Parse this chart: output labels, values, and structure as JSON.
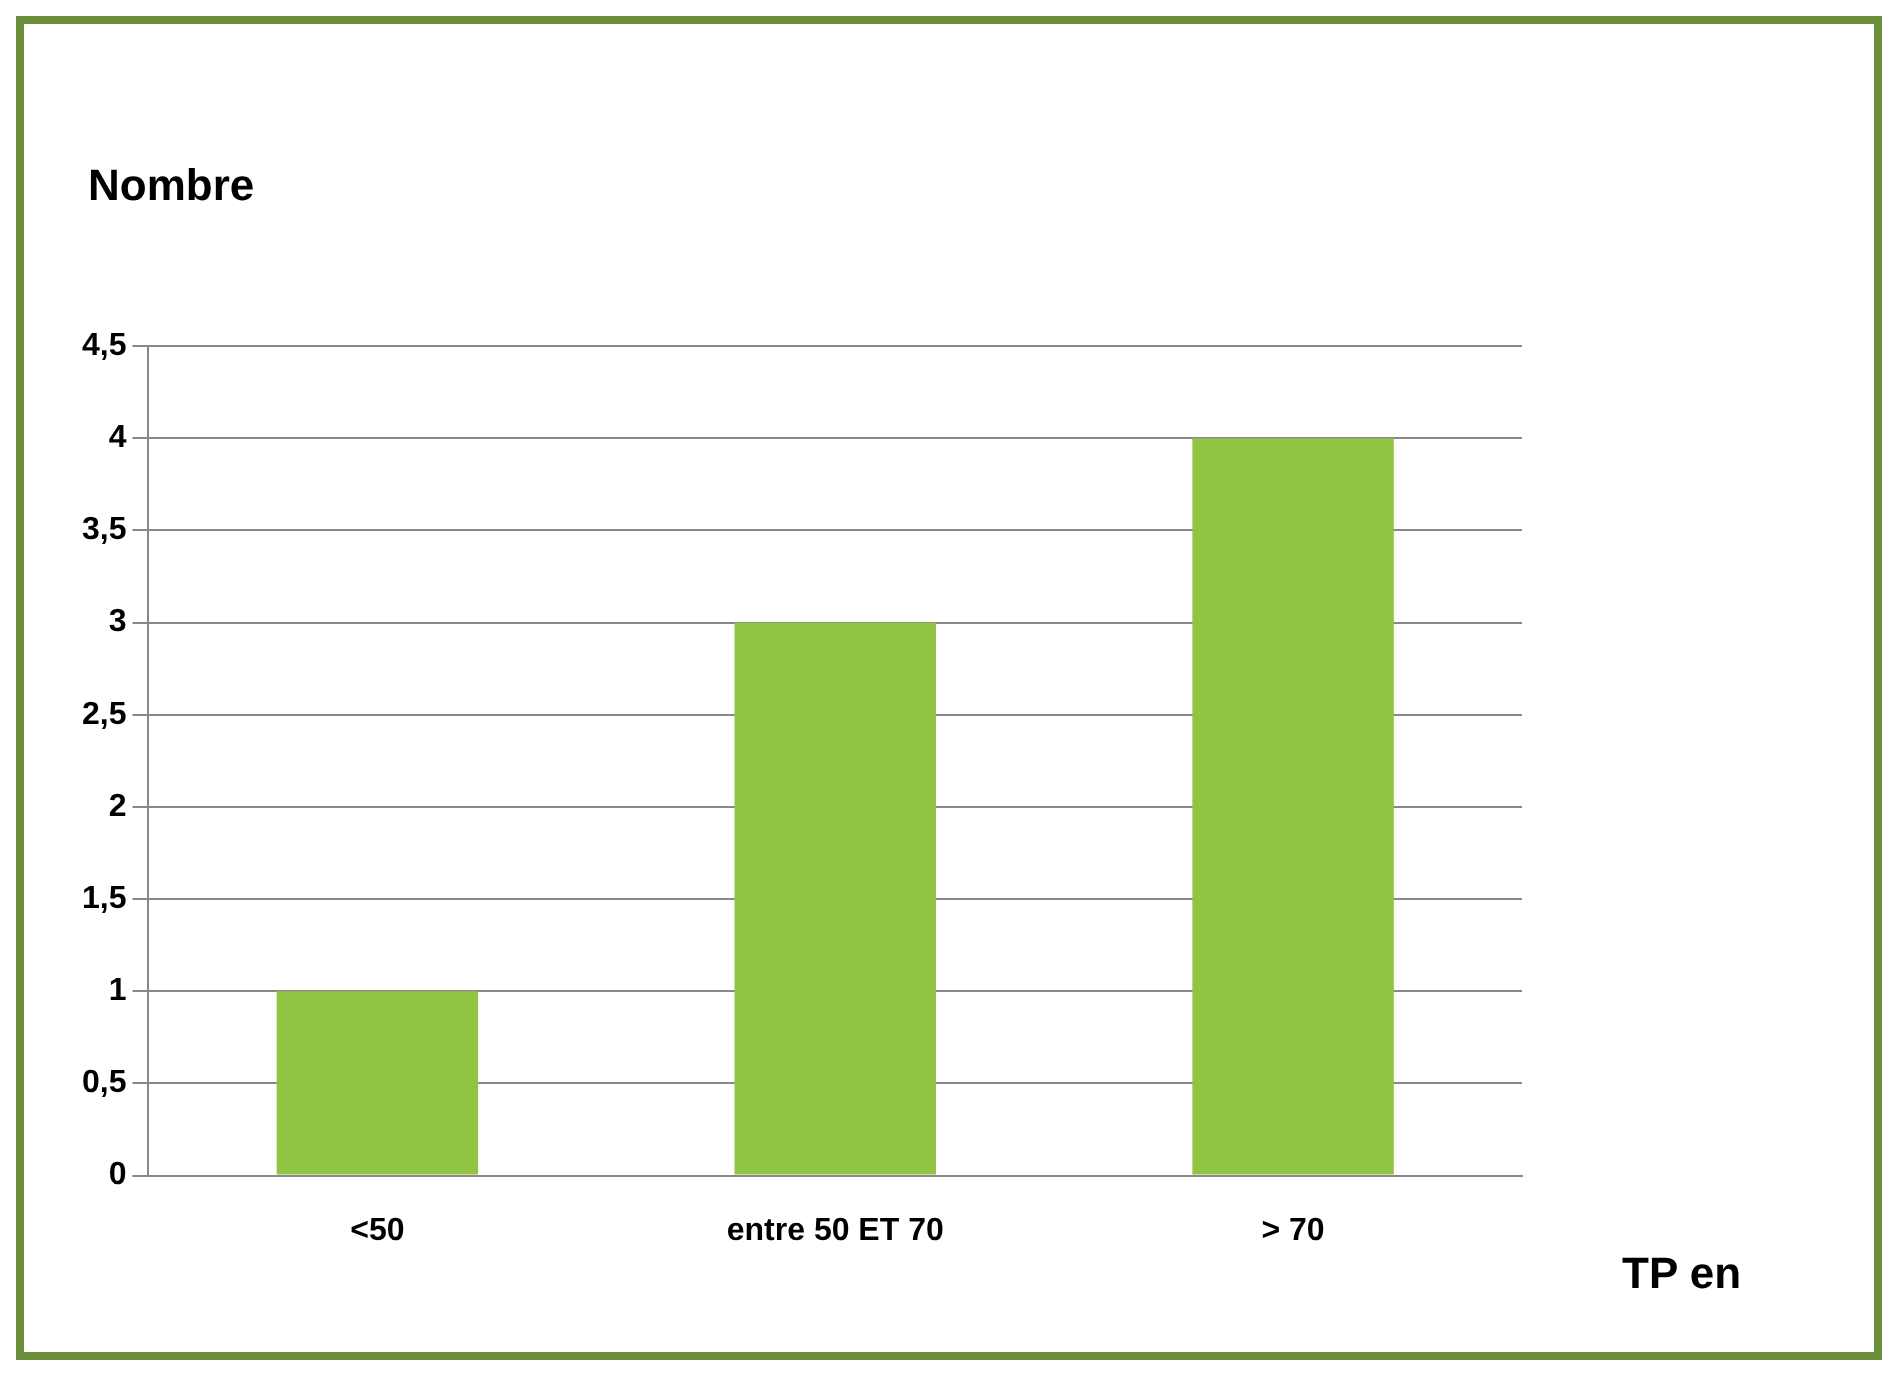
{
  "chart_data": {
    "type": "bar",
    "ylabel": "Nombre",
    "xlabel": "TP en",
    "categories": [
      "<50",
      "entre 50 ET 70",
      "> 70"
    ],
    "values": [
      1,
      3,
      4
    ],
    "color": "#92c444",
    "ylim": [
      0,
      4.5
    ],
    "yticks": [
      0,
      {
        "value": 0.5,
        "label": "0,5"
      },
      1,
      {
        "value": 1.5,
        "label": "1,5"
      },
      2,
      {
        "value": 2.5,
        "label": "2,5"
      },
      3,
      {
        "value": 3.5,
        "label": "3,5"
      },
      4,
      {
        "value": 4.5,
        "label": "4,5"
      }
    ],
    "grid": "y"
  }
}
